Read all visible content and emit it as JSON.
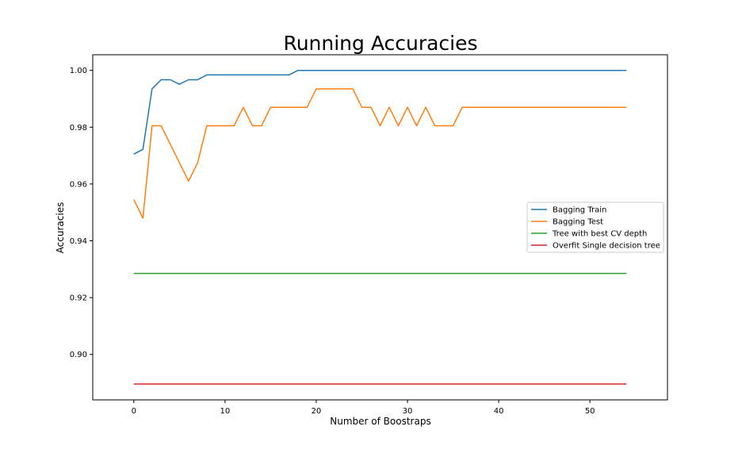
{
  "chart_data": {
    "type": "line",
    "title": "Running Accuracies",
    "xlabel": "Number of Boostraps",
    "ylabel": "Accuracies",
    "xlim": [
      -4.5,
      58.5
    ],
    "ylim": [
      0.884,
      1.0055
    ],
    "xticks": [
      0,
      10,
      20,
      30,
      40,
      50
    ],
    "yticks": [
      0.9,
      0.92,
      0.94,
      0.96,
      0.98,
      1.0
    ],
    "ytick_labels": [
      "0.90",
      "0.92",
      "0.94",
      "0.96",
      "0.98",
      "1.00"
    ],
    "grid": false,
    "legend_position": "center-right",
    "series": [
      {
        "name": "Bagging Train",
        "color": "#1f77b4",
        "x": [
          0,
          1,
          2,
          3,
          4,
          5,
          6,
          7,
          8,
          9,
          10,
          11,
          12,
          13,
          14,
          15,
          16,
          17,
          18,
          19,
          20,
          21,
          22,
          23,
          24,
          25,
          26,
          27,
          28,
          29,
          30,
          31,
          32,
          33,
          34,
          35,
          36,
          37,
          38,
          39,
          40,
          41,
          42,
          43,
          44,
          45,
          46,
          47,
          48,
          49,
          50,
          51,
          52,
          53,
          54
        ],
        "values": [
          0.9705,
          0.9722,
          0.9935,
          0.9967,
          0.9967,
          0.9951,
          0.9967,
          0.9967,
          0.9984,
          0.9984,
          0.9984,
          0.9984,
          0.9984,
          0.9984,
          0.9984,
          0.9984,
          0.9984,
          0.9984,
          1.0,
          1.0,
          1.0,
          1.0,
          1.0,
          1.0,
          1.0,
          1.0,
          1.0,
          1.0,
          1.0,
          1.0,
          1.0,
          1.0,
          1.0,
          1.0,
          1.0,
          1.0,
          1.0,
          1.0,
          1.0,
          1.0,
          1.0,
          1.0,
          1.0,
          1.0,
          1.0,
          1.0,
          1.0,
          1.0,
          1.0,
          1.0,
          1.0,
          1.0,
          1.0,
          1.0,
          1.0
        ]
      },
      {
        "name": "Bagging Test",
        "color": "#ff7f0e",
        "x": [
          0,
          1,
          2,
          3,
          4,
          5,
          6,
          7,
          8,
          9,
          10,
          11,
          12,
          13,
          14,
          15,
          16,
          17,
          18,
          19,
          20,
          21,
          22,
          23,
          24,
          25,
          26,
          27,
          28,
          29,
          30,
          31,
          32,
          33,
          34,
          35,
          36,
          37,
          38,
          39,
          40,
          41,
          42,
          43,
          44,
          45,
          46,
          47,
          48,
          49,
          50,
          51,
          52,
          53,
          54
        ],
        "values": [
          0.9545,
          0.948,
          0.9805,
          0.9805,
          0.974,
          0.9675,
          0.961,
          0.9675,
          0.9805,
          0.9805,
          0.9805,
          0.9805,
          0.987,
          0.9805,
          0.9805,
          0.987,
          0.987,
          0.987,
          0.987,
          0.987,
          0.9935,
          0.9935,
          0.9935,
          0.9935,
          0.9935,
          0.987,
          0.987,
          0.9805,
          0.987,
          0.9805,
          0.987,
          0.9805,
          0.987,
          0.9805,
          0.9805,
          0.9805,
          0.987,
          0.987,
          0.987,
          0.987,
          0.987,
          0.987,
          0.987,
          0.987,
          0.987,
          0.987,
          0.987,
          0.987,
          0.987,
          0.987,
          0.987,
          0.987,
          0.987,
          0.987,
          0.987
        ]
      },
      {
        "name": "Tree with best CV depth",
        "color": "#2ca02c",
        "x": [
          0,
          54
        ],
        "values": [
          0.9285,
          0.9285
        ]
      },
      {
        "name": "Overfit Single decision tree",
        "color": "#d62728",
        "x": [
          0,
          54
        ],
        "values": [
          0.8896,
          0.8896
        ]
      }
    ]
  }
}
